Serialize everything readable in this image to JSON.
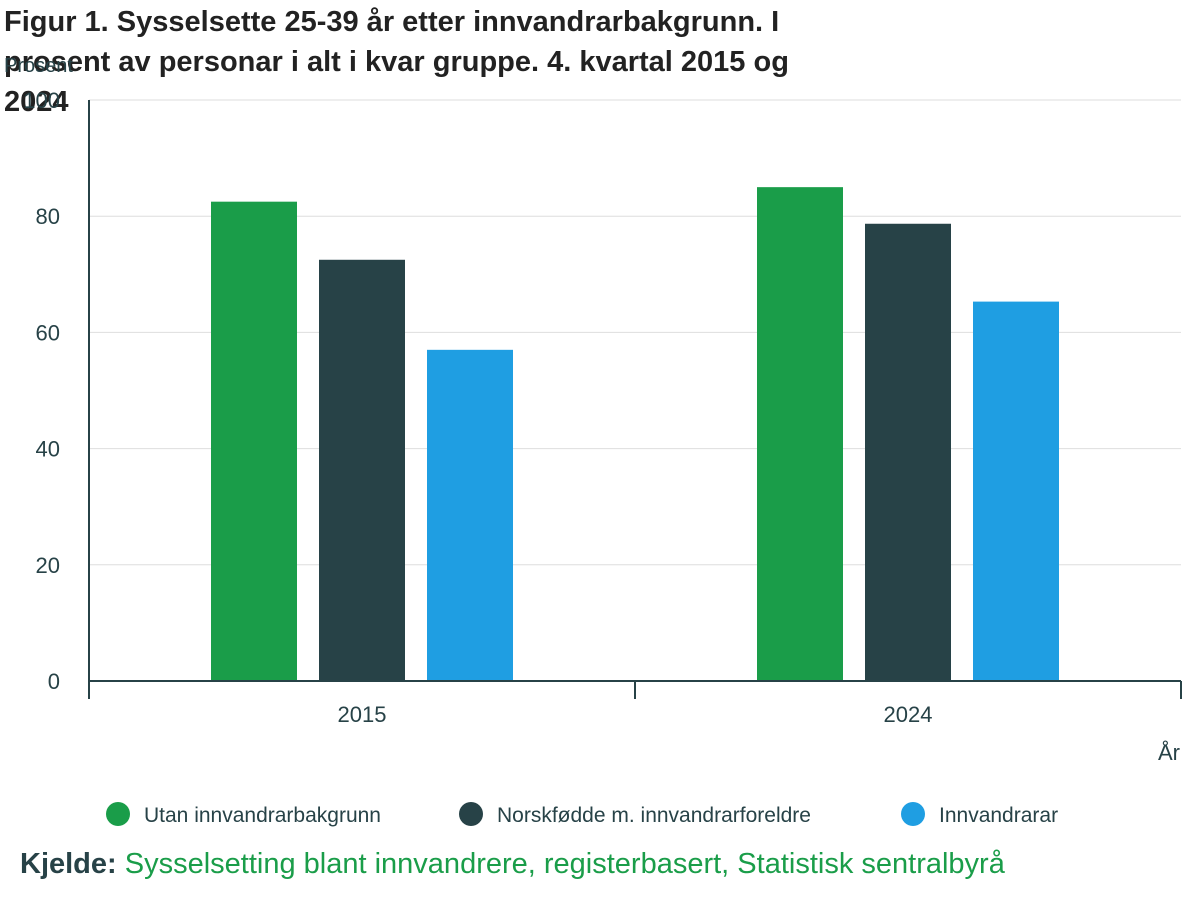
{
  "chart_data": {
    "type": "bar",
    "title_lines": [
      "Figur 1. Sysselsette 25-39 år etter innvandrarbakgrunn. I",
      "prosent av personar i alt i kvar gruppe. 4. kvartal 2015 og",
      "2024"
    ],
    "ylabel": "Prosent",
    "xlabel": "År",
    "categories": [
      "2015",
      "2024"
    ],
    "ylim": [
      0,
      100
    ],
    "yticks": [
      0,
      20,
      40,
      60,
      80,
      100
    ],
    "grid": true,
    "legend_position": "bottom",
    "series": [
      {
        "name": "Utan innvandrarbakgrunn",
        "color": "#1a9d49",
        "values": [
          82.5,
          85.0
        ]
      },
      {
        "name": "Norskfødde m. innvandrarforeldre",
        "color": "#274247",
        "values": [
          72.5,
          78.7
        ]
      },
      {
        "name": "Innvandrarar",
        "color": "#1f9ee2",
        "values": [
          57.0,
          65.3
        ]
      }
    ]
  },
  "source": {
    "label": "Kjelde:",
    "text": "Sysselsetting blant innvandrere, registerbasert, Statistisk sentralbyrå"
  }
}
